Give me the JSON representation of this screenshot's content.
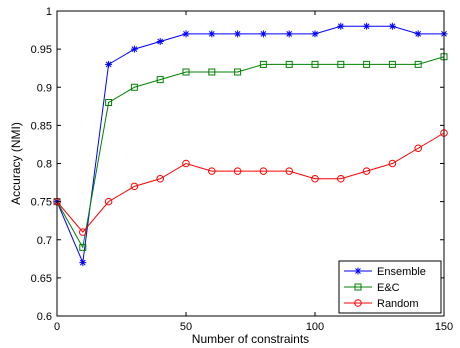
{
  "chart_data": {
    "type": "line",
    "xlabel": "Number of constraints",
    "ylabel": "Accuracy (NMI)",
    "xlim": [
      0,
      150
    ],
    "ylim": [
      0.6,
      1.0
    ],
    "xticks": [
      0,
      50,
      100,
      150
    ],
    "yticks": [
      0.6,
      0.65,
      0.7,
      0.75,
      0.8,
      0.85,
      0.9,
      0.95,
      1.0
    ],
    "ytick_labels": [
      "0.6",
      "0.65",
      "0.7",
      "0.75",
      "0.8",
      "0.85",
      "0.9",
      "0.95",
      "1"
    ],
    "grid": false,
    "legend_position": "bottom-right",
    "x": [
      0,
      10,
      20,
      30,
      40,
      50,
      60,
      70,
      80,
      90,
      100,
      110,
      120,
      130,
      140,
      150
    ],
    "series": [
      {
        "name": "Ensemble",
        "color": "#0000ff",
        "marker": "asterisk",
        "values": [
          0.75,
          0.67,
          0.93,
          0.95,
          0.96,
          0.97,
          0.97,
          0.97,
          0.97,
          0.97,
          0.97,
          0.98,
          0.98,
          0.98,
          0.97,
          0.97
        ]
      },
      {
        "name": "E&C",
        "color": "#008000",
        "marker": "square",
        "values": [
          0.75,
          0.69,
          0.88,
          0.9,
          0.91,
          0.92,
          0.92,
          0.92,
          0.93,
          0.93,
          0.93,
          0.93,
          0.93,
          0.93,
          0.93,
          0.94
        ]
      },
      {
        "name": "Random",
        "color": "#ff0000",
        "marker": "circle",
        "values": [
          0.75,
          0.71,
          0.75,
          0.77,
          0.78,
          0.8,
          0.79,
          0.79,
          0.79,
          0.79,
          0.78,
          0.78,
          0.79,
          0.8,
          0.82,
          0.84
        ]
      }
    ]
  }
}
